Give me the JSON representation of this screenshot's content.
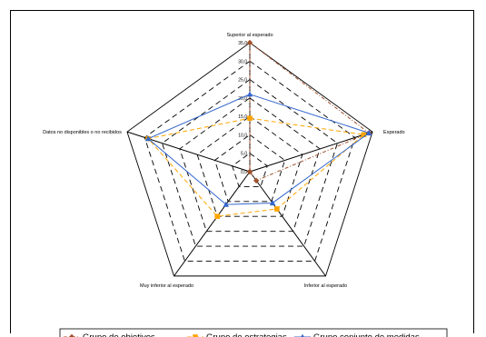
{
  "chart_data": {
    "type": "radar",
    "axes": [
      "Superior al esperado",
      "Esperado",
      "Inferior al esperado",
      "Muy inferior al esperado",
      "Datos no disponibles o no recibidos"
    ],
    "r_ticks": [
      "0,0",
      "5,0",
      "10,0",
      "15,0",
      "20,0",
      "25,0",
      "30,0",
      "35,0"
    ],
    "rlim": [
      0,
      35
    ],
    "grid": true,
    "legend_position": "bottom",
    "series": [
      {
        "name": "Grupo de objetivos",
        "values": [
          35.0,
          34.0,
          3.0,
          0.0,
          0.0
        ],
        "color": "#a0522d",
        "marker": "diamond",
        "dash": "4,2,1,2"
      },
      {
        "name": "Grupo de estrategias",
        "values": [
          14.5,
          32.5,
          12.5,
          15.0,
          29.0
        ],
        "color": "#ffa500",
        "marker": "square",
        "dash": "5,3"
      },
      {
        "name": "Grupo conjunto de medidas",
        "values": [
          21.0,
          34.0,
          10.5,
          11.0,
          29.0
        ],
        "color": "#3366cc",
        "marker": "triangle",
        "dash": ""
      }
    ]
  }
}
